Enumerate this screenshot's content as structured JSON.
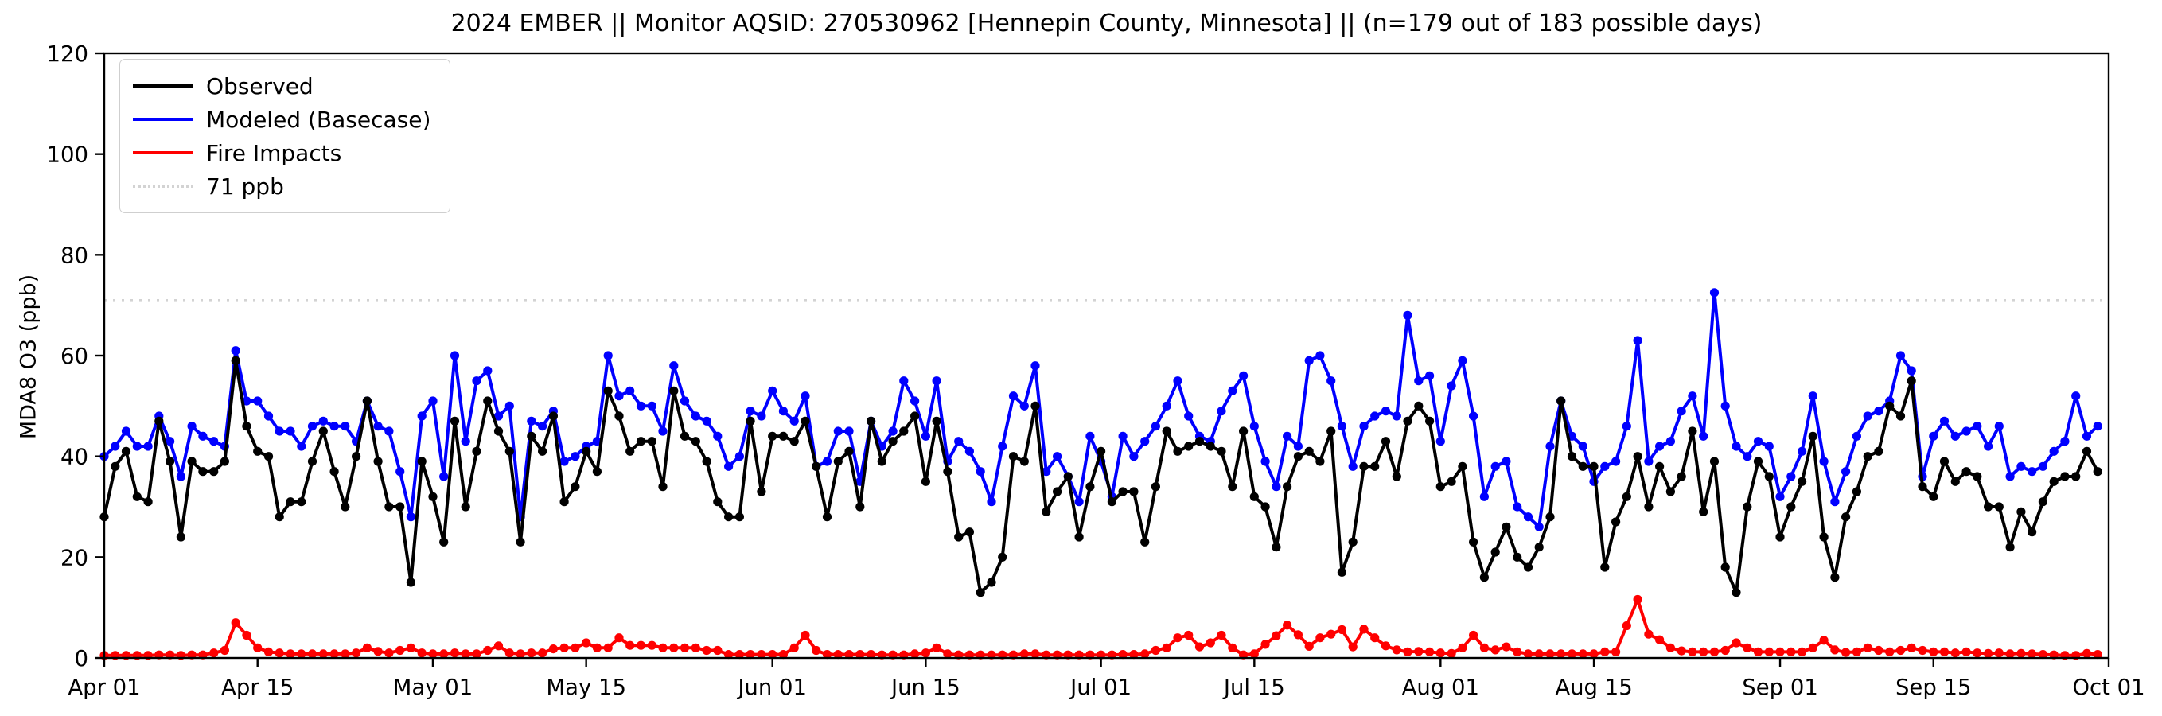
{
  "figure": {
    "title": "2024 EMBER || Monitor AQSID: 270530962 [Hennepin County, Minnesota] || (n=179 out of 183 possible days)",
    "ylabel": "MDA8 O3 (ppb)"
  },
  "legend": {
    "items": [
      {
        "label": "Observed",
        "color": "#000000",
        "dash": "solid"
      },
      {
        "label": "Modeled (Basecase)",
        "color": "#0000ff",
        "dash": "solid"
      },
      {
        "label": "Fire Impacts",
        "color": "#ff0000",
        "dash": "solid"
      },
      {
        "label": "71 ppb",
        "color": "#d3d3d3",
        "dash": "dotted"
      }
    ]
  },
  "chart_data": {
    "type": "line",
    "title": "2024 EMBER || Monitor AQSID: 270530962 [Hennepin County, Minnesota] || (n=179 out of 183 possible days)",
    "xlabel": "",
    "ylabel": "MDA8 O3 (ppb)",
    "ylim": [
      0,
      120
    ],
    "yticks": [
      0,
      20,
      40,
      60,
      80,
      100,
      120
    ],
    "grid": false,
    "legend_position": "upper left",
    "threshold": {
      "value": 71,
      "label": "71 ppb",
      "color": "#d3d3d3",
      "style": "dotted"
    },
    "total_days": 183,
    "x_ticks": [
      {
        "day": 0,
        "label": "Apr 01"
      },
      {
        "day": 14,
        "label": "Apr 15"
      },
      {
        "day": 30,
        "label": "May 01"
      },
      {
        "day": 44,
        "label": "May 15"
      },
      {
        "day": 61,
        "label": "Jun 01"
      },
      {
        "day": 75,
        "label": "Jun 15"
      },
      {
        "day": 91,
        "label": "Jul 01"
      },
      {
        "day": 105,
        "label": "Jul 15"
      },
      {
        "day": 122,
        "label": "Aug 01"
      },
      {
        "day": 136,
        "label": "Aug 15"
      },
      {
        "day": 153,
        "label": "Sep 01"
      },
      {
        "day": 167,
        "label": "Sep 15"
      },
      {
        "day": 183,
        "label": "Oct 01"
      }
    ],
    "series": [
      {
        "name": "Observed",
        "color": "#000000",
        "marker": "circle",
        "values": [
          28,
          38,
          41,
          32,
          31,
          47,
          39,
          24,
          39,
          37,
          37,
          39,
          59,
          46,
          41,
          40,
          28,
          31,
          31,
          39,
          45,
          37,
          30,
          40,
          51,
          39,
          30,
          30,
          15,
          39,
          32,
          23,
          47,
          30,
          41,
          51,
          45,
          41,
          23,
          44,
          41,
          48,
          31,
          34,
          41,
          37,
          53,
          48,
          41,
          43,
          43,
          34,
          53,
          44,
          43,
          39,
          31,
          28,
          28,
          47,
          33,
          44,
          44,
          43,
          47,
          38,
          28,
          39,
          41,
          30,
          47,
          39,
          43,
          45,
          48,
          35,
          47,
          37,
          24,
          25,
          13,
          15,
          20,
          40,
          39,
          50,
          29,
          33,
          36,
          24,
          34,
          41,
          31,
          33,
          33,
          23,
          34,
          45,
          41,
          42,
          43,
          42,
          41,
          34,
          45,
          32,
          30,
          22,
          34,
          40,
          41,
          39,
          45,
          17,
          23,
          38,
          38,
          43,
          36,
          47,
          50,
          47,
          34,
          35,
          38,
          23,
          16,
          21,
          26,
          20,
          18,
          22,
          28,
          51,
          40,
          38,
          38,
          18,
          27,
          32,
          40,
          30,
          38,
          33,
          36,
          45,
          29,
          39,
          18,
          13,
          30,
          39,
          36,
          24,
          30,
          35,
          44,
          24,
          16,
          28,
          33,
          40,
          41,
          50,
          48,
          55,
          34,
          32,
          39,
          35,
          37,
          36,
          30,
          30,
          22,
          29,
          25,
          31,
          35,
          36,
          36,
          41,
          37
        ]
      },
      {
        "name": "Modeled (Basecase)",
        "color": "#0000ff",
        "marker": "circle",
        "values": [
          40,
          42,
          45,
          42,
          42,
          48,
          43,
          36,
          46,
          44,
          43,
          42,
          61,
          51,
          51,
          48,
          45,
          45,
          42,
          46,
          47,
          46,
          46,
          43,
          51,
          46,
          45,
          37,
          28,
          48,
          51,
          36,
          60,
          43,
          55,
          57,
          48,
          50,
          28,
          47,
          46,
          49,
          39,
          40,
          42,
          43,
          60,
          52,
          53,
          50,
          50,
          45,
          58,
          51,
          48,
          47,
          44,
          38,
          40,
          49,
          48,
          53,
          49,
          47,
          52,
          38,
          39,
          45,
          45,
          35,
          47,
          42,
          45,
          55,
          51,
          44,
          55,
          39,
          43,
          41,
          37,
          31,
          42,
          52,
          50,
          58,
          37,
          40,
          36,
          31,
          44,
          39,
          32,
          44,
          40,
          43,
          46,
          50,
          55,
          48,
          44,
          43,
          49,
          53,
          56,
          46,
          39,
          34,
          44,
          42,
          59,
          60,
          55,
          46,
          38,
          46,
          48,
          49,
          48,
          68,
          55,
          56,
          43,
          54,
          59,
          48,
          32,
          38,
          39,
          30,
          28,
          26,
          42,
          51,
          44,
          42,
          35,
          38,
          39,
          46,
          63,
          39,
          42,
          43,
          49,
          52,
          44,
          72.5,
          50,
          42,
          40,
          43,
          42,
          32,
          36,
          41,
          52,
          39,
          31,
          37,
          44,
          48,
          49,
          51,
          60,
          57,
          36,
          44,
          47,
          44,
          45,
          46,
          42,
          46,
          36,
          38,
          37,
          38,
          41,
          43,
          52,
          44,
          46
        ]
      },
      {
        "name": "Fire Impacts",
        "color": "#ff0000",
        "marker": "circle",
        "values": [
          0.5,
          0.5,
          0.5,
          0.5,
          0.5,
          0.6,
          0.6,
          0.5,
          0.6,
          0.6,
          1,
          1.5,
          7,
          4.5,
          2,
          1.2,
          1,
          0.8,
          0.8,
          0.8,
          0.8,
          0.8,
          0.8,
          1,
          2,
          1.3,
          1,
          1.5,
          2,
          1,
          0.8,
          0.8,
          1,
          0.8,
          0.8,
          1.5,
          2.4,
          1,
          0.8,
          1,
          1,
          1.8,
          2,
          2,
          3,
          2,
          2,
          4,
          2.5,
          2.5,
          2.5,
          2,
          2,
          2,
          2,
          1.5,
          1.5,
          0.7,
          0.7,
          0.7,
          0.7,
          0.7,
          0.7,
          2,
          4.5,
          1.5,
          0.7,
          0.7,
          0.7,
          0.7,
          0.7,
          0.6,
          0.6,
          0.6,
          0.8,
          1,
          2,
          0.8,
          0.6,
          0.6,
          0.6,
          0.6,
          0.6,
          0.6,
          0.8,
          0.8,
          0.6,
          0.6,
          0.6,
          0.6,
          0.6,
          0.6,
          0.6,
          0.7,
          0.7,
          0.8,
          1.5,
          2,
          4,
          4.5,
          2.2,
          3,
          4.5,
          2,
          0.6,
          0.8,
          2.7,
          4.4,
          6.5,
          4.6,
          2.3,
          4,
          4.7,
          5.6,
          2.2,
          5.7,
          4,
          2.4,
          1.6,
          1.2,
          1.3,
          1.2,
          1,
          0.9,
          2,
          4.5,
          2,
          1.6,
          2.2,
          1.2,
          0.8,
          0.8,
          0.8,
          0.8,
          0.8,
          0.8,
          0.8,
          1.2,
          1.2,
          6.4,
          11.6,
          4.7,
          3.6,
          2,
          1.4,
          1.2,
          1.2,
          1.2,
          1.5,
          3,
          2,
          1.2,
          1.2,
          1.2,
          1.2,
          1.2,
          2,
          3.5,
          1.6,
          1.1,
          1.2,
          2,
          1.5,
          1.2,
          1.5,
          2,
          1.5,
          1.2,
          1.2,
          1,
          1.2,
          1,
          0.9,
          1,
          0.8,
          0.9,
          0.8,
          0.7,
          0.6,
          0.5,
          0.5,
          0.9,
          0.7
        ]
      }
    ]
  }
}
